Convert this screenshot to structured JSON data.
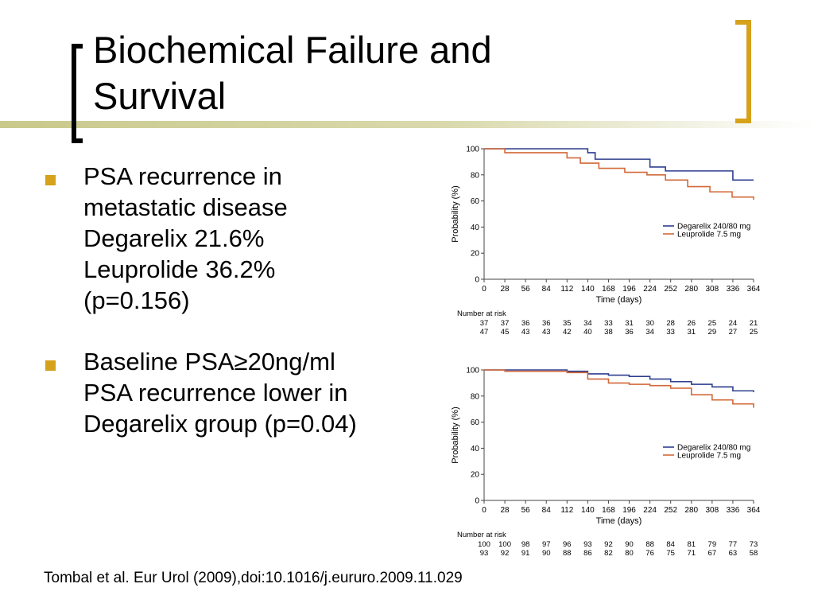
{
  "slide": {
    "title_line1": "Biochemical Failure and",
    "title_line2": "Survival",
    "citation": "Tombal et al. Eur Urol (2009),doi:10.1016/j.eururo.2009.11.029"
  },
  "bullets": [
    {
      "lines": [
        "PSA recurrence in",
        "metastatic disease",
        "Degarelix 21.6%",
        "Leuprolide 36.2%",
        "(p=0.156)"
      ]
    },
    {
      "lines": [
        "Baseline PSA≥20ng/ml",
        "PSA recurrence lower in",
        "Degarelix group (p=0.04)"
      ]
    }
  ],
  "colors": {
    "bullet": "#d6a21b",
    "degarelix": "#2e3f8f",
    "leuprolide": "#d2693a",
    "right_bracket": "#d6a21b"
  },
  "chart_data": [
    {
      "type": "line",
      "step": true,
      "xlabel": "Time (days)",
      "ylabel": "Probability (%)",
      "x_ticks": [
        0,
        28,
        56,
        84,
        112,
        140,
        168,
        196,
        224,
        252,
        280,
        308,
        336,
        364
      ],
      "y_ticks": [
        0,
        20,
        40,
        60,
        80,
        100
      ],
      "xlim": [
        0,
        364
      ],
      "ylim": [
        0,
        100
      ],
      "legend_position": "right",
      "series": [
        {
          "name": "Degarelix 240/80 mg",
          "color": "#2e3f8f",
          "x": [
            0,
            140,
            150,
            224,
            245,
            336,
            364
          ],
          "y": [
            100,
            97,
            92,
            86,
            83,
            76,
            76
          ]
        },
        {
          "name": "Leuprolide 7.5 mg",
          "color": "#d2693a",
          "x": [
            0,
            28,
            112,
            130,
            155,
            190,
            220,
            245,
            275,
            305,
            335,
            364
          ],
          "y": [
            100,
            97,
            93,
            89,
            85,
            82,
            80,
            76,
            71,
            67,
            63,
            61
          ]
        }
      ],
      "risk_table": {
        "title": "Number at risk",
        "rows": [
          {
            "color": "#2e3f8f",
            "values": [
              37,
              37,
              36,
              36,
              35,
              34,
              33,
              31,
              30,
              28,
              26,
              25,
              24,
              21
            ]
          },
          {
            "color": "#d2693a",
            "values": [
              47,
              45,
              43,
              43,
              42,
              40,
              38,
              36,
              34,
              33,
              31,
              29,
              27,
              25
            ]
          }
        ]
      }
    },
    {
      "type": "line",
      "step": true,
      "xlabel": "Time (days)",
      "ylabel": "Probability (%)",
      "x_ticks": [
        0,
        28,
        56,
        84,
        112,
        140,
        168,
        196,
        224,
        252,
        280,
        308,
        336,
        364
      ],
      "y_ticks": [
        0,
        20,
        40,
        60,
        80,
        100
      ],
      "xlim": [
        0,
        364
      ],
      "ylim": [
        0,
        100
      ],
      "legend_position": "right",
      "series": [
        {
          "name": "Degarelix 240/80 mg",
          "color": "#2e3f8f",
          "x": [
            0,
            112,
            140,
            168,
            196,
            224,
            252,
            280,
            308,
            336,
            364
          ],
          "y": [
            100,
            99,
            97,
            96,
            95,
            93,
            91,
            89,
            87,
            84,
            83
          ]
        },
        {
          "name": "Leuprolide 7.5 mg",
          "color": "#d2693a",
          "x": [
            0,
            28,
            112,
            140,
            168,
            196,
            224,
            252,
            280,
            308,
            336,
            364
          ],
          "y": [
            100,
            99,
            98,
            93,
            90,
            89,
            88,
            86,
            81,
            77,
            74,
            71
          ]
        }
      ],
      "risk_table": {
        "title": "Number at risk",
        "rows": [
          {
            "color": "#2e3f8f",
            "values": [
              100,
              100,
              98,
              97,
              96,
              93,
              92,
              90,
              88,
              84,
              81,
              79,
              77,
              73
            ]
          },
          {
            "color": "#d2693a",
            "values": [
              93,
              92,
              91,
              90,
              88,
              86,
              82,
              80,
              76,
              75,
              71,
              67,
              63,
              58
            ]
          }
        ]
      }
    }
  ]
}
